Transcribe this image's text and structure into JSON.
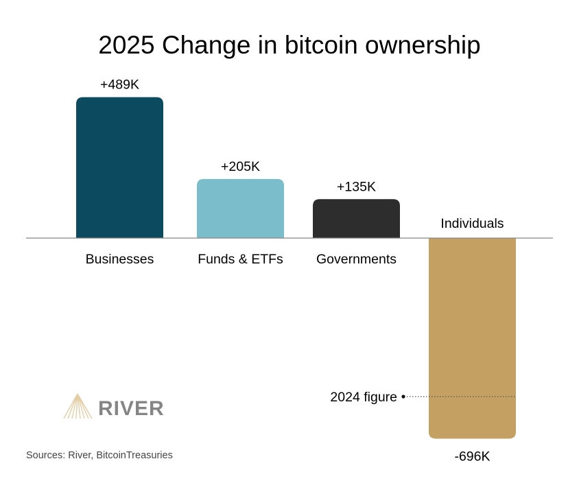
{
  "chart_data": {
    "type": "bar",
    "title": "2025 Change in bitcoin ownership",
    "categories": [
      "Businesses",
      "Funds & ETFs",
      "Governments",
      "Individuals"
    ],
    "values": [
      489,
      205,
      135,
      -696
    ],
    "unit": "K",
    "data_labels": [
      "+489K",
      "+205K",
      "+135K",
      "-696K"
    ],
    "colors": [
      "#0b4a5f",
      "#7bbdcb",
      "#2d2d2d",
      "#c4a062"
    ],
    "reference": {
      "label": "2024 figure",
      "category": "Individuals",
      "value": -550
    },
    "xlabel": "",
    "ylabel": "",
    "ylim": [
      -720,
      500
    ],
    "grid": false,
    "legend": "none"
  },
  "logo": {
    "text": "RIVER"
  },
  "source": "Sources: River, BitcoinTreasuries"
}
